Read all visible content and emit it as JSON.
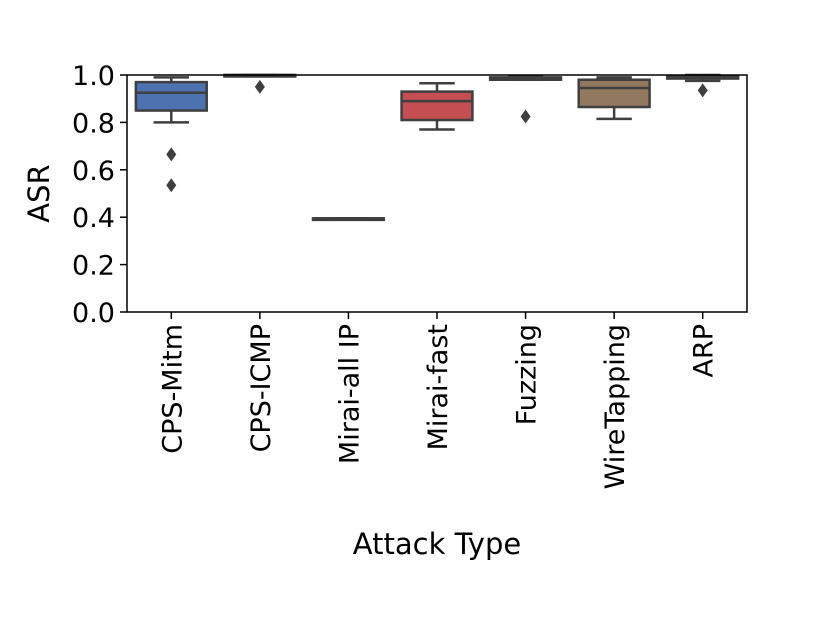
{
  "chart_data": {
    "type": "box",
    "xlabel": "Attack Type",
    "ylabel": "ASR",
    "ylim": [
      0.0,
      1.0
    ],
    "yticks": [
      "0.0",
      "0.2",
      "0.4",
      "0.6",
      "0.8",
      "1.0"
    ],
    "grid": false,
    "categories": [
      "CPS-Mitm",
      "CPS-ICMP",
      "Mirai-all IP",
      "Mirai-fast",
      "Fuzzing",
      "WireTapping",
      "ARP"
    ],
    "boxes": [
      {
        "category": "CPS-Mitm",
        "color": "#4c72b0",
        "whisker_low": 0.8,
        "q1": 0.85,
        "median": 0.925,
        "q3": 0.97,
        "whisker_high": 0.99,
        "outliers": [
          0.665,
          0.535
        ]
      },
      {
        "category": "CPS-ICMP",
        "color": "#dd8452",
        "whisker_low": 0.998,
        "q1": 0.999,
        "median": 1.0,
        "q3": 1.0,
        "whisker_high": 1.0,
        "outliers": [
          0.95
        ]
      },
      {
        "category": "Mirai-all IP",
        "color": "#55a868",
        "whisker_low": 0.395,
        "q1": 0.395,
        "median": 0.395,
        "q3": 0.395,
        "whisker_high": 0.395,
        "outliers": []
      },
      {
        "category": "Mirai-fast",
        "color": "#c44e52",
        "whisker_low": 0.77,
        "q1": 0.81,
        "median": 0.89,
        "q3": 0.93,
        "whisker_high": 0.965,
        "outliers": []
      },
      {
        "category": "Fuzzing",
        "color": "#8172b3",
        "whisker_low": 0.98,
        "q1": 0.98,
        "median": 0.985,
        "q3": 0.99,
        "whisker_high": 0.995,
        "outliers": [
          0.825
        ]
      },
      {
        "category": "WireTapping",
        "color": "#937860",
        "whisker_low": 0.815,
        "q1": 0.865,
        "median": 0.945,
        "q3": 0.98,
        "whisker_high": 0.99,
        "outliers": []
      },
      {
        "category": "ARP",
        "color": "#da8bc3",
        "whisker_low": 0.975,
        "q1": 0.985,
        "median": 0.99,
        "q3": 0.995,
        "whisker_high": 1.0,
        "outliers": [
          0.935
        ]
      }
    ]
  }
}
